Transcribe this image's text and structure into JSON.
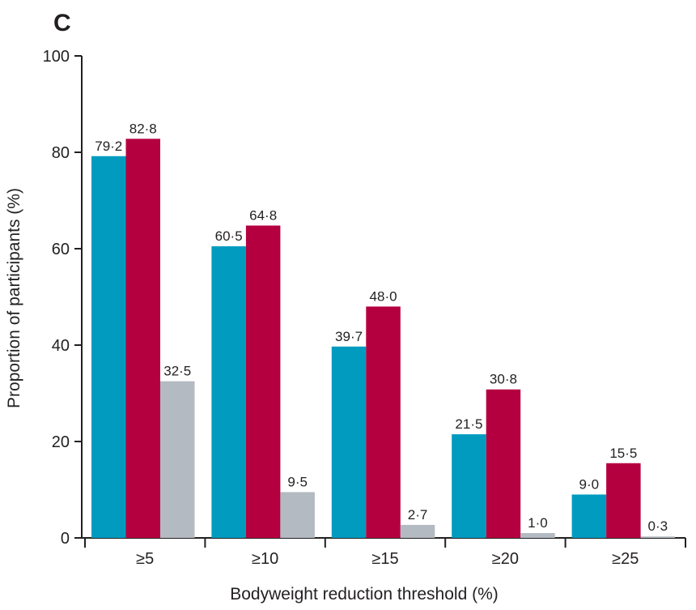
{
  "panel_label": "C",
  "colors": {
    "series": [
      "#009bbf",
      "#b5003f",
      "#b4bac1"
    ],
    "axis": "#231f20"
  },
  "chart_data": {
    "type": "bar",
    "title": "",
    "xlabel": "Bodyweight reduction threshold (%)",
    "ylabel": "Proportion of participants (%)",
    "categories": [
      "≥5",
      "≥10",
      "≥15",
      "≥20",
      "≥25"
    ],
    "ylim": [
      0,
      100
    ],
    "yticks": [
      0,
      20,
      40,
      60,
      80,
      100
    ],
    "grid": false,
    "legend": "none",
    "series": [
      {
        "values": [
          79.2,
          60.5,
          39.7,
          21.5,
          9.0
        ],
        "labels": [
          "79·2",
          "60·5",
          "39·7",
          "21·5",
          "9·0"
        ]
      },
      {
        "values": [
          82.8,
          64.8,
          48.0,
          30.8,
          15.5
        ],
        "labels": [
          "82·8",
          "64·8",
          "48·0",
          "30·8",
          "15·5"
        ]
      },
      {
        "values": [
          32.5,
          9.5,
          2.7,
          1.0,
          0.3
        ],
        "labels": [
          "32·5",
          "9·5",
          "2·7",
          "1·0",
          "0·3"
        ]
      }
    ]
  }
}
